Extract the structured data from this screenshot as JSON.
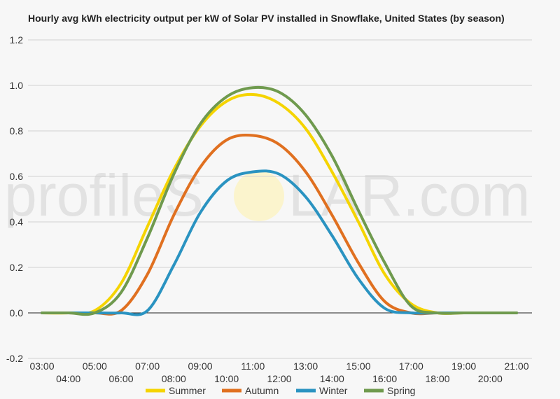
{
  "chart_data": {
    "type": "line",
    "title": "Hourly avg kWh electricity output per kW of Solar PV installed in Snowflake, United States (by season)",
    "xlabel": "",
    "ylabel": "",
    "ylim": [
      -0.2,
      1.2
    ],
    "yticks": [
      "1.2",
      "1.0",
      "0.8",
      "0.6",
      "0.4",
      "0.2",
      "0.0",
      "-0.2"
    ],
    "ytick_values": [
      1.2,
      1.0,
      0.8,
      0.6,
      0.4,
      0.2,
      0.0,
      -0.2
    ],
    "categories": [
      "03:00",
      "04:00",
      "05:00",
      "06:00",
      "07:00",
      "08:00",
      "09:00",
      "10:00",
      "11:00",
      "12:00",
      "13:00",
      "14:00",
      "15:00",
      "16:00",
      "17:00",
      "18:00",
      "19:00",
      "20:00",
      "21:00"
    ],
    "grid": true,
    "legend_position": "bottom",
    "series": [
      {
        "name": "Summer",
        "color": "#f5d400",
        "values": [
          0,
          0,
          0.01,
          0.13,
          0.38,
          0.63,
          0.82,
          0.93,
          0.96,
          0.92,
          0.81,
          0.62,
          0.4,
          0.17,
          0.04,
          0.0,
          0,
          0,
          0
        ]
      },
      {
        "name": "Autumn",
        "color": "#e07020",
        "values": [
          0,
          0,
          0,
          0.01,
          0.17,
          0.43,
          0.64,
          0.76,
          0.78,
          0.74,
          0.62,
          0.43,
          0.22,
          0.05,
          0.0,
          0,
          0,
          0,
          0
        ]
      },
      {
        "name": "Winter",
        "color": "#2a93c1",
        "values": [
          0,
          0,
          0,
          0,
          0.01,
          0.21,
          0.44,
          0.58,
          0.62,
          0.61,
          0.51,
          0.34,
          0.15,
          0.02,
          0,
          0,
          0,
          0,
          0
        ]
      },
      {
        "name": "Spring",
        "color": "#6f9a4e",
        "values": [
          0,
          0,
          0.0,
          0.09,
          0.33,
          0.61,
          0.83,
          0.95,
          0.99,
          0.97,
          0.87,
          0.69,
          0.45,
          0.22,
          0.03,
          0,
          0,
          0,
          0
        ]
      }
    ]
  },
  "watermark": {
    "before": "profileS",
    "after": "LAR.com"
  }
}
